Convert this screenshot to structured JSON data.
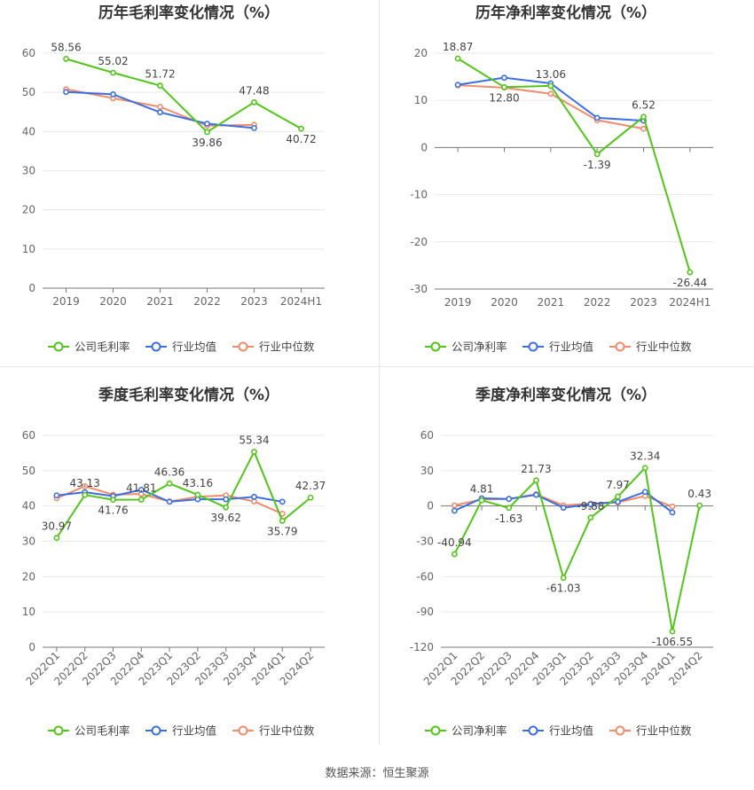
{
  "colors": {
    "company": "#52c41a",
    "industry_avg": "#3b6fe0",
    "industry_median": "#f08c6c",
    "grid": "#e9e9e9",
    "axis": "#999999",
    "text": "#666666",
    "title": "#333333"
  },
  "chart_data": [
    {
      "type": "line",
      "title": "历年毛利率变化情况（%）",
      "categories": [
        "2019",
        "2020",
        "2021",
        "2022",
        "2023",
        "2024H1"
      ],
      "ylim": [
        0,
        60
      ],
      "yticks": [
        0,
        10,
        20,
        30,
        40,
        50,
        60
      ],
      "grid": true,
      "legend_position": "bottom",
      "series": [
        {
          "name": "公司毛利率",
          "role": "company",
          "values": [
            58.56,
            55.02,
            51.72,
            39.86,
            47.48,
            40.72
          ]
        },
        {
          "name": "行业均值",
          "role": "industry_avg",
          "values": [
            50.1,
            49.5,
            44.9,
            42.0,
            40.9,
            null
          ]
        },
        {
          "name": "行业中位数",
          "role": "industry_median",
          "values": [
            50.8,
            48.5,
            46.3,
            41.5,
            41.7,
            null
          ]
        }
      ],
      "labels": [
        "58.56",
        "55.02",
        "51.72",
        "39.86",
        "47.48",
        "40.72"
      ]
    },
    {
      "type": "line",
      "title": "历年净利率变化情况（%）",
      "categories": [
        "2019",
        "2020",
        "2021",
        "2022",
        "2023",
        "2024H1"
      ],
      "ylim": [
        -30,
        20
      ],
      "yticks": [
        -30,
        -20,
        -10,
        0,
        10,
        20
      ],
      "grid": true,
      "legend_position": "bottom",
      "series": [
        {
          "name": "公司净利率",
          "role": "company",
          "values": [
            18.87,
            12.8,
            13.06,
            -1.39,
            6.52,
            -26.44
          ]
        },
        {
          "name": "行业均值",
          "role": "industry_avg",
          "values": [
            13.3,
            14.8,
            13.6,
            6.3,
            5.7,
            null
          ]
        },
        {
          "name": "行业中位数",
          "role": "industry_median",
          "values": [
            13.2,
            12.7,
            11.4,
            5.8,
            4.0,
            null
          ]
        }
      ],
      "labels": [
        "18.87",
        "12.80",
        "13.06",
        "-1.39",
        "6.52",
        "-26.44"
      ]
    },
    {
      "type": "line",
      "title": "季度毛利率变化情况（%）",
      "categories": [
        "2022Q1",
        "2022Q2",
        "2022Q3",
        "2022Q4",
        "2023Q1",
        "2023Q2",
        "2023Q3",
        "2023Q4",
        "2024Q1",
        "2024Q2"
      ],
      "ylim": [
        0,
        60
      ],
      "yticks": [
        0,
        10,
        20,
        30,
        40,
        50,
        60
      ],
      "grid": true,
      "legend_position": "bottom",
      "series": [
        {
          "name": "公司毛利率",
          "role": "company",
          "values": [
            30.97,
            43.13,
            41.76,
            41.81,
            46.36,
            43.16,
            39.62,
            55.34,
            35.79,
            42.37
          ]
        },
        {
          "name": "行业均值",
          "role": "industry_avg",
          "values": [
            43.0,
            43.9,
            42.8,
            44.6,
            41.2,
            41.9,
            41.9,
            42.6,
            41.2,
            null
          ]
        },
        {
          "name": "行业中位数",
          "role": "industry_median",
          "values": [
            42.2,
            45.6,
            43.2,
            43.4,
            41.3,
            42.6,
            43.0,
            41.3,
            37.8,
            null
          ]
        }
      ],
      "labels": [
        "30.97",
        "43.13",
        "41.76",
        "41.81",
        "46.36",
        "43.16",
        "39.62",
        "55.34",
        "35.79",
        "42.37"
      ]
    },
    {
      "type": "line",
      "title": "季度净利率变化情况（%）",
      "categories": [
        "2022Q1",
        "2022Q2",
        "2022Q3",
        "2022Q4",
        "2023Q1",
        "2023Q2",
        "2023Q3",
        "2023Q4",
        "2024Q1",
        "2024Q2"
      ],
      "ylim": [
        -120,
        60
      ],
      "yticks": [
        -120,
        -90,
        -60,
        -30,
        0,
        30,
        60
      ],
      "grid": true,
      "legend_position": "bottom",
      "series": [
        {
          "name": "公司净利率",
          "role": "company",
          "values": [
            -40.94,
            4.81,
            -1.63,
            21.73,
            -61.03,
            -9.88,
            7.97,
            32.34,
            -106.55,
            0.43
          ]
        },
        {
          "name": "行业均值",
          "role": "industry_avg",
          "values": [
            -4.0,
            6.5,
            6.0,
            9.5,
            -1.5,
            1.5,
            3.5,
            12.0,
            -5.5,
            null
          ]
        },
        {
          "name": "行业中位数",
          "role": "industry_median",
          "values": [
            0.5,
            5.5,
            6.0,
            10.0,
            0.5,
            2.0,
            3.0,
            8.5,
            -0.5,
            null
          ]
        }
      ],
      "labels": [
        "-40.94",
        "4.81",
        "-1.63",
        "21.73",
        "-61.03",
        "-9.88",
        "7.97",
        "32.34",
        "-106.55",
        "0.43"
      ]
    }
  ],
  "footer": {
    "source": "数据来源：恒生聚源"
  }
}
